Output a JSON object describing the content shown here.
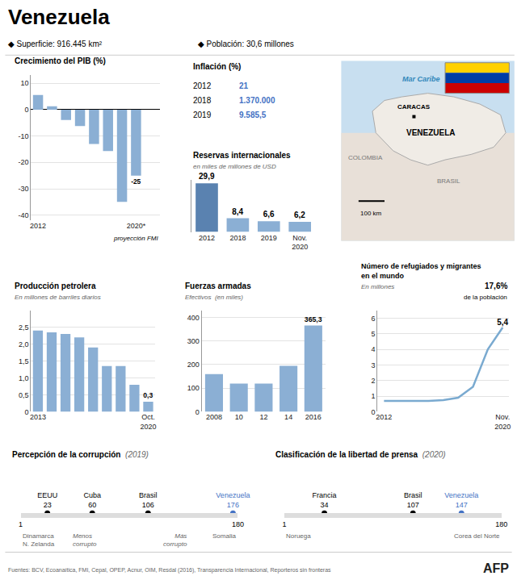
{
  "header": {
    "title": "Venezuela",
    "texts": [
      "◆ Superficie: 916.445 km²",
      "◆ Población: 30,6 millones"
    ]
  },
  "chart_data": [
    {
      "type": "bar",
      "title": "Crecimiento del PIB (%)",
      "categories": [
        "2012",
        null,
        null,
        null,
        null,
        null,
        null,
        "2020*"
      ],
      "values": [
        5.6,
        1.3,
        -3.9,
        -6.2,
        -13.0,
        -15.7,
        -35.0,
        -25.0
      ],
      "value_labels": [
        null,
        null,
        null,
        null,
        null,
        null,
        null,
        "-25"
      ],
      "color": "#8bafd4",
      "ylim": [
        -42,
        13
      ],
      "yticks": [
        -40,
        -30,
        -20,
        -10,
        0,
        10
      ],
      "grid": true,
      "annotations": [
        {
          "text": "proyección FMI",
          "category": "2020*"
        }
      ]
    },
    {
      "type": "table",
      "title": "Inflación (%)",
      "rows": [
        [
          "2012",
          "21"
        ],
        [
          "2018",
          "1.370.000"
        ],
        [
          "2019",
          "9.585,5"
        ]
      ],
      "color": "#4472c4"
    },
    {
      "type": "bar",
      "title": "Reservas internacionales",
      "subtitle": "en miles de millones de USD",
      "categories": [
        "2012",
        "2018",
        "2019",
        "Nov.\n2020"
      ],
      "values": [
        29.9,
        8.4,
        6.6,
        6.2
      ],
      "value_labels": [
        "29,9",
        "8,4",
        "6,6",
        "6,2"
      ],
      "colors": [
        "#5a82b0",
        "#8bafd4",
        "#8bafd4",
        "#8bafd4"
      ],
      "ylim": [
        0,
        32
      ],
      "grid": false,
      "tick_labels": "x"
    },
    {
      "type": "map",
      "labels": [
        "Mar Caribe",
        "CARACAS",
        "VENEZUELA",
        "COLOMBIA",
        "BRASIL",
        "100 km"
      ],
      "colors": [
        "#c8dff0",
        "#e8e0d8",
        "#f0ece6",
        "#FFD100",
        "#003DA5",
        "#CC0001"
      ]
    },
    {
      "type": "bar",
      "title": "Producción petrolera",
      "subtitle": "En millones de barriles diarios",
      "categories": [
        "2013",
        null,
        null,
        null,
        null,
        null,
        null,
        null,
        "Oct.\n2020"
      ],
      "values": [
        2.4,
        2.35,
        2.3,
        2.2,
        1.9,
        1.35,
        1.35,
        0.8,
        0.3
      ],
      "value_labels": [
        null,
        null,
        null,
        null,
        null,
        null,
        null,
        null,
        "0,3"
      ],
      "color": "#8bafd4",
      "ylim": [
        0,
        3.0
      ],
      "yticks": [
        0,
        {
          "value": 0.5,
          "label": "0,5"
        },
        {
          "value": 1.0,
          "label": "1,0"
        },
        {
          "value": 1.5,
          "label": "1,5"
        },
        {
          "value": 2.0,
          "label": "2,0"
        },
        {
          "value": 2.5,
          "label": "2,5"
        }
      ],
      "grid": true
    },
    {
      "type": "bar",
      "title": "Fuerzas armadas",
      "subtitle": "Efectivos  (en miles)",
      "categories": [
        "2008",
        "10",
        "12",
        "14",
        "2016"
      ],
      "values": [
        160,
        120,
        120,
        195,
        365.3
      ],
      "value_labels": [
        null,
        null,
        null,
        null,
        "365,3"
      ],
      "color": "#8bafd4",
      "ylim": [
        0,
        430
      ],
      "yticks": [
        0,
        100,
        200,
        300,
        400
      ],
      "grid": true
    },
    {
      "type": "line",
      "title": "Número de refugiados y migrantes\nen el mundo",
      "subtitle": "En millones",
      "categories": [
        "2012",
        null,
        null,
        null,
        null,
        null,
        null,
        null,
        "Nov.\n2020"
      ],
      "values": [
        0.7,
        0.7,
        0.7,
        0.7,
        0.75,
        0.9,
        1.6,
        4.0,
        5.4
      ],
      "value_labels": [
        null,
        null,
        null,
        null,
        null,
        null,
        null,
        null,
        "5,4"
      ],
      "color": "#7aaad0",
      "ylim": [
        0,
        6.5
      ],
      "yticks": [
        0,
        1,
        2,
        3,
        4,
        5,
        6
      ],
      "grid": true,
      "annotations": [
        {
          "text": "17,6%"
        },
        {
          "text": "de la población"
        }
      ]
    },
    {
      "type": "scale",
      "title": "Percepción de la corrupción",
      "subtitle": "(2019)",
      "categories": [
        "EEUU",
        "Cuba",
        "Brasil",
        "Venezuela"
      ],
      "values": [
        23,
        60,
        106,
        176
      ],
      "colors": [
        "#000000",
        "#000000",
        "#000000",
        "#4472c4"
      ],
      "data_labels": true,
      "xlim": [
        1,
        180
      ],
      "xticks": [
        1,
        180
      ],
      "annotations": [
        {
          "text": "Dinamarca\nN. Zelanda",
          "x": 1
        },
        {
          "text": "Somalia",
          "x": 180
        },
        {
          "text": "Menos\ncorrupto",
          "x": 1
        },
        {
          "text": "Más\ncorrupto",
          "x": 180
        }
      ]
    },
    {
      "type": "scale",
      "title": "Clasificación de la libertad de prensa",
      "subtitle": "(2020)",
      "categories": [
        "Francia",
        "Brasil",
        "Venezuela"
      ],
      "values": [
        34,
        107,
        147
      ],
      "colors": [
        "#000000",
        "#000000",
        "#4472c4"
      ],
      "data_labels": true,
      "xlim": [
        1,
        180
      ],
      "xticks": [
        1,
        180
      ],
      "annotations": [
        {
          "text": "Noruega",
          "x": 1
        },
        {
          "text": "Corea del Norte",
          "x": 180
        }
      ]
    }
  ],
  "footer": [
    "Fuentes: BCV, Ecoanaítica, FMI, Cepal, OPEP, Acnur, OIM, Resdal (2016), Transparencia Internacional, Reporteros sin fronteras",
    "AFP"
  ]
}
